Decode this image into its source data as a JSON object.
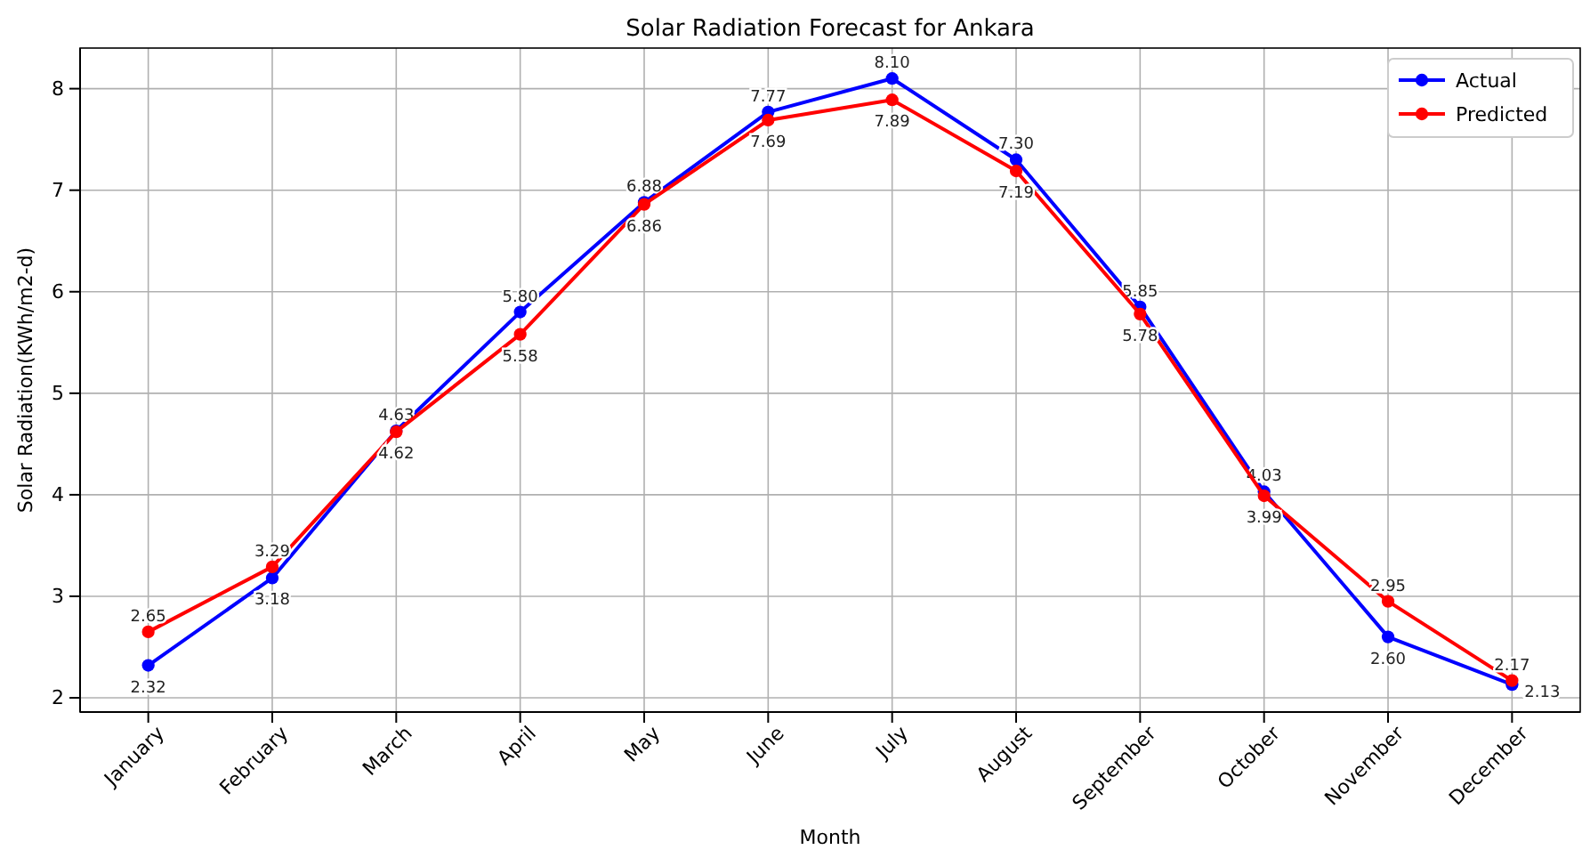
{
  "chart_data": {
    "type": "line",
    "title": "Solar Radiation Forecast for Ankara",
    "xlabel": "Month",
    "ylabel": "Solar Radiation(KWh/m2-d)",
    "categories": [
      "January",
      "February",
      "March",
      "April",
      "May",
      "June",
      "July",
      "August",
      "September",
      "October",
      "November",
      "December"
    ],
    "series": [
      {
        "name": "Actual",
        "color": "#0000ff",
        "values": [
          2.32,
          3.18,
          4.63,
          5.8,
          6.88,
          7.77,
          8.1,
          7.3,
          5.85,
          4.03,
          2.6,
          2.13
        ],
        "value_labels": [
          "2.32",
          "3.18",
          "4.63",
          "5.80",
          "6.88",
          "7.77",
          "8.10",
          "7.30",
          "5.85",
          "4.03",
          "2.60",
          "2.13"
        ]
      },
      {
        "name": "Predicted",
        "color": "#ff0000",
        "values": [
          2.65,
          3.29,
          4.62,
          5.58,
          6.86,
          7.69,
          7.89,
          7.19,
          5.78,
          3.99,
          2.95,
          2.17
        ],
        "value_labels": [
          "2.65",
          "3.29",
          "4.62",
          "5.58",
          "6.86",
          "7.69",
          "7.89",
          "7.19",
          "5.78",
          "3.99",
          "2.95",
          "2.17"
        ]
      }
    ],
    "ylim": [
      1.86,
      8.4
    ],
    "yticks": [
      2,
      3,
      4,
      5,
      6,
      7,
      8
    ],
    "grid": true,
    "legend": "top right",
    "marker": "circle",
    "line_style": "solid"
  }
}
